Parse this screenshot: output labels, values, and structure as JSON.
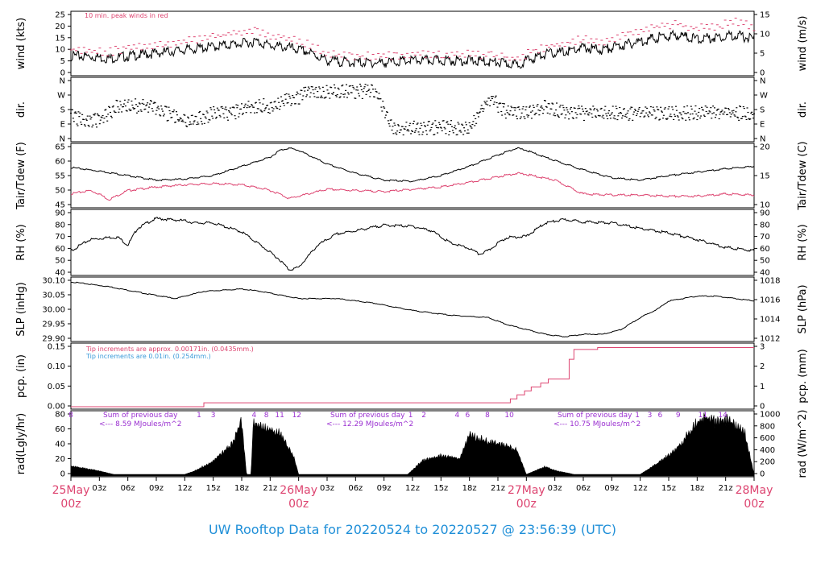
{
  "title": "UW Rooftop Data for 20220524  to  20220527 @ 23:56:39  (UTC)",
  "colors": {
    "series": "#000000",
    "accent": "#dd4470",
    "title": "#1f8fd8",
    "solar": "#9a2fd0",
    "pcp_note": "#3a9ad9"
  },
  "time_axis": {
    "range_hours": [
      0,
      72
    ],
    "ticks": [
      "03z",
      "06z",
      "09z",
      "12z",
      "15z",
      "18z",
      "21z",
      "03z",
      "06z",
      "09z",
      "12z",
      "15z",
      "18z",
      "21z",
      "03z",
      "06z",
      "09z",
      "12z",
      "15z",
      "18z",
      "21z"
    ],
    "day_labels": [
      {
        "day": "25May",
        "z": "00z"
      },
      {
        "day": "26May",
        "z": "00z"
      },
      {
        "day": "27May",
        "z": "00z"
      },
      {
        "day": "28May",
        "z": "00z"
      }
    ]
  },
  "panels": [
    {
      "id": "wind",
      "left_label": "wind (kts)",
      "right_label": "wind (m/s)",
      "left_ticks": [
        "0",
        "5",
        "10",
        "15",
        "20",
        "25"
      ],
      "right_ticks": [
        "0",
        "5",
        "10",
        "15"
      ],
      "note": "10 min. peak winds in red"
    },
    {
      "id": "dir",
      "left_label": "dir.",
      "right_label": "dir.",
      "left_ticks": [
        "N",
        "E",
        "S",
        "W",
        "N"
      ],
      "right_ticks": [
        "N",
        "E",
        "S",
        "W",
        "N"
      ]
    },
    {
      "id": "temp",
      "left_label": "Tair/Tdew (F)",
      "right_label": "Tair/Tdew (C)",
      "left_ticks": [
        "45",
        "50",
        "55",
        "60",
        "65"
      ],
      "right_ticks": [
        "10",
        "15",
        "20"
      ]
    },
    {
      "id": "rh",
      "left_label": "RH (%)",
      "right_label": "RH (%)",
      "left_ticks": [
        "40",
        "50",
        "60",
        "70",
        "80",
        "90"
      ],
      "right_ticks": [
        "40",
        "50",
        "60",
        "70",
        "80",
        "90"
      ]
    },
    {
      "id": "slp",
      "left_label": "SLP (inHg)",
      "right_label": "SLP (hPa)",
      "left_ticks": [
        "29.90",
        "29.95",
        "30.00",
        "30.05",
        "30.10"
      ],
      "right_ticks": [
        "1012",
        "1014",
        "1016",
        "1018"
      ]
    },
    {
      "id": "pcp",
      "left_label": "pcp. (in)",
      "right_label": "pcp. (mm)",
      "left_ticks": [
        "0.00",
        "0.05",
        "0.10",
        "0.15"
      ],
      "right_ticks": [
        "0",
        "1",
        "2",
        "3"
      ],
      "notes": [
        "Tip increments are approx. 0.00171in. (0.0435mm.)",
        "Tip increments are 0.01in. (0.254mm.)"
      ]
    },
    {
      "id": "rad",
      "left_label": "rad(Lgly/hr)",
      "right_label": "rad (W/m^2)",
      "left_ticks": [
        "0",
        "20",
        "40",
        "60",
        "80"
      ],
      "right_ticks": [
        "0",
        "200",
        "400",
        "600",
        "800",
        "1000"
      ],
      "solar_notes": [
        {
          "l1": "Sum of previous day",
          "l2": "<--- 8.59 MJoules/m^2"
        },
        {
          "l1": "Sum of previous day",
          "l2": "<--- 12.29 MJoules/m^2"
        },
        {
          "l1": "Sum of previous day",
          "l2": "<--- 10.75 MJoules/m^2"
        }
      ],
      "hour_marks": [
        {
          "t": 0,
          "label": "8"
        },
        {
          "t": 13.5,
          "label": "1"
        },
        {
          "t": 15.0,
          "label": "3"
        },
        {
          "t": 19.3,
          "label": "4"
        },
        {
          "t": 20.6,
          "label": "8"
        },
        {
          "t": 22.0,
          "label": "11"
        },
        {
          "t": 23.8,
          "label": "12"
        },
        {
          "t": 35.8,
          "label": "1"
        },
        {
          "t": 37.2,
          "label": "2"
        },
        {
          "t": 40.7,
          "label": "4"
        },
        {
          "t": 41.8,
          "label": "6"
        },
        {
          "t": 43.9,
          "label": "8"
        },
        {
          "t": 46.2,
          "label": "10"
        },
        {
          "t": 59.7,
          "label": "1"
        },
        {
          "t": 61.0,
          "label": "3"
        },
        {
          "t": 62.1,
          "label": "6"
        },
        {
          "t": 64.0,
          "label": "9"
        },
        {
          "t": 66.6,
          "label": "11"
        },
        {
          "t": 68.7,
          "label": "14"
        }
      ]
    }
  ],
  "chart_data": {
    "type": "line",
    "x_units": "hours since 2022-05-25 00z",
    "x_range": [
      0,
      72
    ],
    "series": [
      {
        "name": "wind",
        "units": "kts",
        "ylim": [
          0,
          28
        ],
        "x": [
          0,
          2,
          4,
          6,
          8,
          10,
          12,
          14,
          16,
          18,
          19.5,
          21,
          23,
          25,
          27,
          30,
          33,
          36,
          39,
          42,
          45,
          47,
          48,
          50,
          52,
          54,
          56,
          58,
          60,
          62,
          64,
          66,
          68,
          70,
          72
        ],
        "y": [
          8,
          8,
          7,
          8,
          9,
          10,
          11,
          12,
          13,
          14,
          15,
          13,
          12,
          10,
          6,
          5,
          5,
          6,
          6,
          6,
          5,
          4,
          6,
          9,
          10,
          12,
          11,
          13,
          15,
          17,
          18,
          16,
          17,
          18,
          16
        ]
      },
      {
        "name": "10 min. peak winds",
        "units": "kts",
        "ylim": [
          0,
          28
        ],
        "x": [
          0,
          2,
          4,
          6,
          8,
          10,
          12,
          14,
          16,
          18,
          19.5,
          21,
          23,
          25,
          27,
          30,
          33,
          36,
          39,
          42,
          45,
          47,
          48,
          50,
          52,
          54,
          56,
          58,
          60,
          62,
          64,
          66,
          68,
          70,
          72
        ],
        "y": [
          11,
          11,
          10,
          12,
          13,
          14,
          15,
          16,
          18,
          19,
          20,
          18,
          16,
          14,
          9,
          8,
          8,
          9,
          9,
          9,
          8,
          7,
          9,
          12,
          14,
          16,
          15,
          17,
          20,
          22,
          23,
          21,
          22,
          25,
          21
        ]
      },
      {
        "name": "dir",
        "units": "compass",
        "ylim": [
          "N",
          "E",
          "S",
          "W",
          "N"
        ],
        "x": [
          0,
          1,
          2,
          3,
          4,
          5,
          6,
          8,
          10,
          12,
          13,
          15,
          17,
          19,
          21,
          23,
          24,
          25,
          26,
          28,
          30,
          32,
          34,
          36,
          38,
          40,
          42,
          44,
          44.5,
          45,
          46,
          48,
          50,
          52,
          54,
          56,
          58,
          60,
          62,
          64,
          66,
          68,
          70,
          72
        ],
        "y": [
          "S",
          "SE",
          "SE",
          "SE",
          "S",
          "SW",
          "SW",
          "SW",
          "S",
          "SE",
          "SE",
          "S",
          "S",
          "SW",
          "SW",
          "W",
          "W",
          "NW",
          "NW",
          "NW",
          "NW",
          "NW",
          "E",
          "E",
          "E",
          "E",
          "E",
          "W",
          "W",
          "SW",
          "S",
          "S",
          "SW",
          "S",
          "S",
          "S",
          "S",
          "S",
          "S",
          "S",
          "S",
          "S",
          "S",
          "S"
        ]
      },
      {
        "name": "Tair",
        "units": "F",
        "ylim": [
          42,
          68
        ],
        "x": [
          0,
          3,
          6,
          9,
          12,
          15,
          18,
          21,
          22,
          23,
          24,
          27,
          30,
          33,
          36,
          39,
          42,
          45,
          46,
          47,
          48,
          51,
          54,
          57,
          60,
          63,
          66,
          69,
          72
        ],
        "y": [
          58.5,
          57,
          55,
          53,
          53.5,
          55,
          59,
          63,
          66,
          67,
          66,
          60,
          56,
          53,
          52.5,
          55,
          59,
          64,
          65.5,
          67,
          66,
          61.5,
          57.5,
          54,
          53,
          55,
          56.5,
          58,
          59
        ]
      },
      {
        "name": "Tdew",
        "units": "F",
        "ylim": [
          42,
          68
        ],
        "x": [
          0,
          2,
          3,
          4,
          6,
          9,
          12,
          15,
          18,
          20,
          21,
          22,
          23,
          24,
          27,
          30,
          33,
          36,
          39,
          42,
          45,
          47,
          48,
          51,
          54,
          57,
          60,
          63,
          66,
          69,
          72
        ],
        "y": [
          47,
          48.5,
          47,
          44.5,
          48.5,
          50,
          51,
          51.5,
          51,
          49.5,
          48.5,
          47,
          45,
          46,
          49,
          48.5,
          48,
          49,
          50,
          52,
          54.5,
          56,
          55.5,
          53,
          47,
          46.5,
          46.5,
          46,
          46,
          47,
          46.5
        ]
      },
      {
        "name": "RH",
        "units": "%",
        "ylim": [
          40,
          95
        ],
        "x": [
          0,
          2,
          4,
          5,
          6,
          7,
          8,
          9,
          12,
          13,
          15,
          18,
          20,
          22,
          23,
          24,
          26,
          28,
          30,
          33,
          36,
          38,
          40,
          42,
          43,
          44,
          45,
          46,
          48,
          50,
          52,
          54,
          57,
          60,
          63,
          66,
          69,
          72
        ],
        "y": [
          60,
          70,
          72,
          72,
          65,
          80,
          85,
          89,
          87,
          85,
          85,
          77,
          65,
          52,
          43,
          45,
          65,
          75,
          78,
          83,
          82,
          78,
          67,
          62,
          57,
          60,
          67,
          72,
          73,
          85,
          88,
          86,
          85,
          80,
          76,
          70,
          63,
          60
        ]
      },
      {
        "name": "SLP",
        "units": "inHg",
        "ylim": [
          29.86,
          30.11
        ],
        "x": [
          0,
          4,
          8,
          11,
          14,
          18,
          20,
          24,
          28,
          32,
          36,
          40,
          44,
          46,
          48,
          50,
          52,
          54,
          56,
          58,
          60,
          62,
          63,
          66,
          68,
          70,
          72
        ],
        "y": [
          30.1,
          30.08,
          30.05,
          30.03,
          30.06,
          30.07,
          30.06,
          30.03,
          30.03,
          30.01,
          29.98,
          29.96,
          29.95,
          29.92,
          29.9,
          29.88,
          29.87,
          29.88,
          29.88,
          29.9,
          29.95,
          29.99,
          30.02,
          30.04,
          30.04,
          30.03,
          30.02
        ]
      },
      {
        "name": "pcp",
        "units": "in",
        "ylim": [
          0,
          0.155
        ],
        "step": true,
        "x": [
          0,
          14,
          14.01,
          46.3,
          46.31,
          47,
          47.01,
          47.8,
          47.81,
          48.5,
          48.51,
          49.5,
          49.51,
          50.3,
          50.31,
          52.5,
          52.51,
          53.0,
          53.01,
          55.5,
          55.51,
          56.5,
          56.51,
          72
        ],
        "y": [
          0.0,
          0.0,
          0.01,
          0.01,
          0.02,
          0.02,
          0.03,
          0.03,
          0.04,
          0.04,
          0.05,
          0.05,
          0.06,
          0.06,
          0.07,
          0.07,
          0.12,
          0.12,
          0.145,
          0.145,
          0.15,
          0.15,
          0.15,
          0.15
        ]
      },
      {
        "name": "rad",
        "units": "Lgly/hr",
        "ylim": [
          0,
          87
        ],
        "x": [
          0,
          1,
          3,
          4.5,
          5,
          12,
          13,
          15,
          17,
          18,
          18.5,
          19,
          19.2,
          20,
          22,
          23.5,
          24,
          35.5,
          37,
          39,
          41,
          42,
          44,
          46,
          47,
          48,
          50,
          51,
          53,
          60,
          62,
          63.5,
          65,
          66,
          67,
          68,
          69,
          70,
          71,
          72
        ],
        "y": [
          12,
          10,
          5,
          0,
          0,
          0,
          5,
          20,
          45,
          80,
          0,
          0,
          78,
          76,
          62,
          25,
          0,
          0,
          20,
          28,
          24,
          62,
          48,
          42,
          36,
          0,
          12,
          6,
          0,
          0,
          18,
          35,
          60,
          80,
          85,
          78,
          82,
          74,
          65,
          0
        ]
      }
    ]
  }
}
